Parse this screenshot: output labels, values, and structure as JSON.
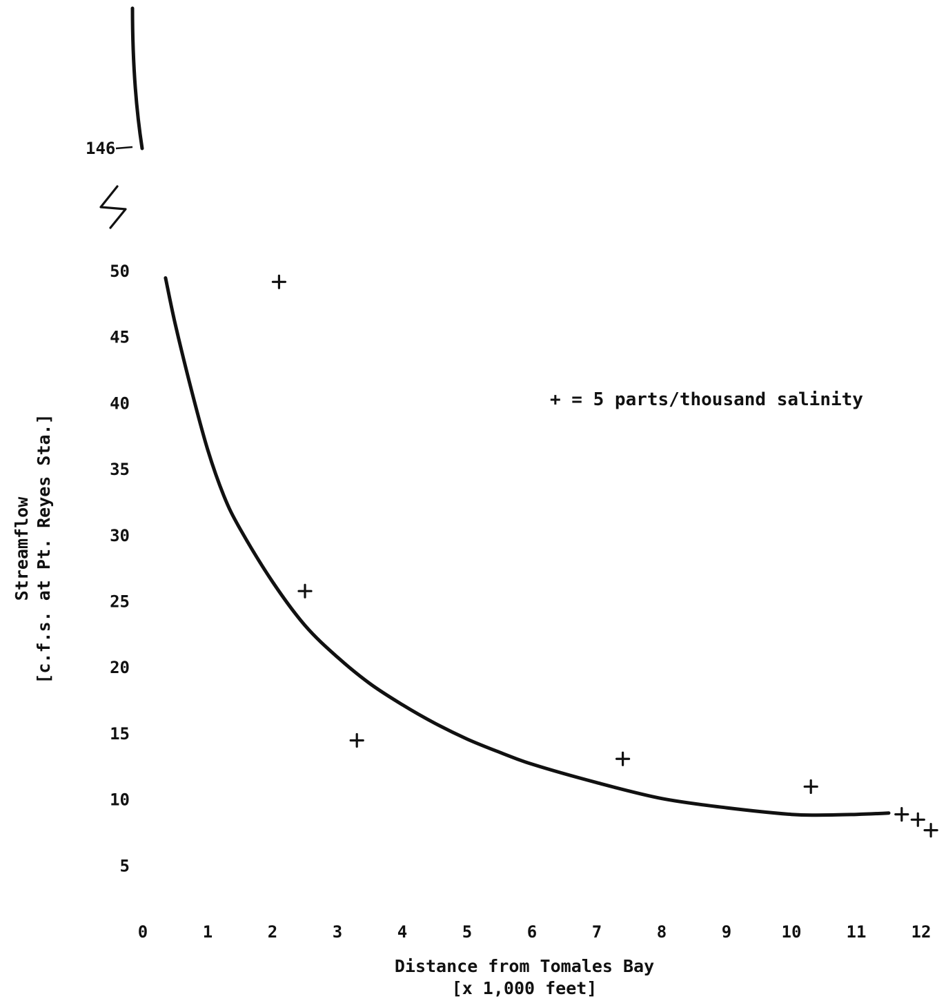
{
  "chart_data": {
    "type": "scatter",
    "title": "",
    "xlabel_line1": "Distance from Tomales Bay",
    "xlabel_line2": "[x 1,000 feet]",
    "ylabel_line1": "Streamflow",
    "ylabel_line2": "[c.f.s. at Pt. Reyes Sta.]",
    "xlim": [
      0,
      12
    ],
    "ylim": [
      0,
      50
    ],
    "x_ticks": [
      "0",
      "1",
      "2",
      "3",
      "4",
      "5",
      "6",
      "7",
      "8",
      "9",
      "10",
      "11",
      "12"
    ],
    "y_ticks": [
      "5",
      "10",
      "15",
      "20",
      "25",
      "30",
      "35",
      "40",
      "45",
      "50"
    ],
    "y_break_label": "146",
    "y_break_value": 146,
    "axis_break": true,
    "grid": false,
    "legend": {
      "text": "+ = 5 parts/thousand salinity",
      "position": "right-middle"
    },
    "points": [
      {
        "x": 2.1,
        "y": 49.2
      },
      {
        "x": 2.5,
        "y": 25.8
      },
      {
        "x": 3.3,
        "y": 14.5
      },
      {
        "x": 7.4,
        "y": 13.1
      },
      {
        "x": 10.3,
        "y": 11.0
      },
      {
        "x": 11.7,
        "y": 8.9
      },
      {
        "x": 11.95,
        "y": 8.5
      },
      {
        "x": 12.15,
        "y": 7.7
      }
    ],
    "fitted_curve": {
      "x": [
        0.35,
        0.5,
        0.75,
        1.0,
        1.25,
        1.5,
        2.0,
        2.5,
        3.0,
        3.5,
        4.0,
        4.5,
        5.0,
        5.5,
        6.0,
        7.0,
        8.0,
        9.0,
        10.0,
        10.5,
        11.0,
        11.5
      ],
      "y": [
        49.5,
        46.0,
        41.0,
        36.5,
        33.0,
        30.5,
        26.5,
        23.2,
        20.8,
        18.8,
        17.2,
        15.8,
        14.6,
        13.6,
        12.7,
        11.3,
        10.1,
        9.4,
        8.9,
        8.85,
        8.9,
        9.0
      ]
    },
    "break_segment": [
      {
        "x": -0.15,
        "y": 146
      },
      {
        "x": -0.2,
        "y": 51.0
      }
    ]
  }
}
